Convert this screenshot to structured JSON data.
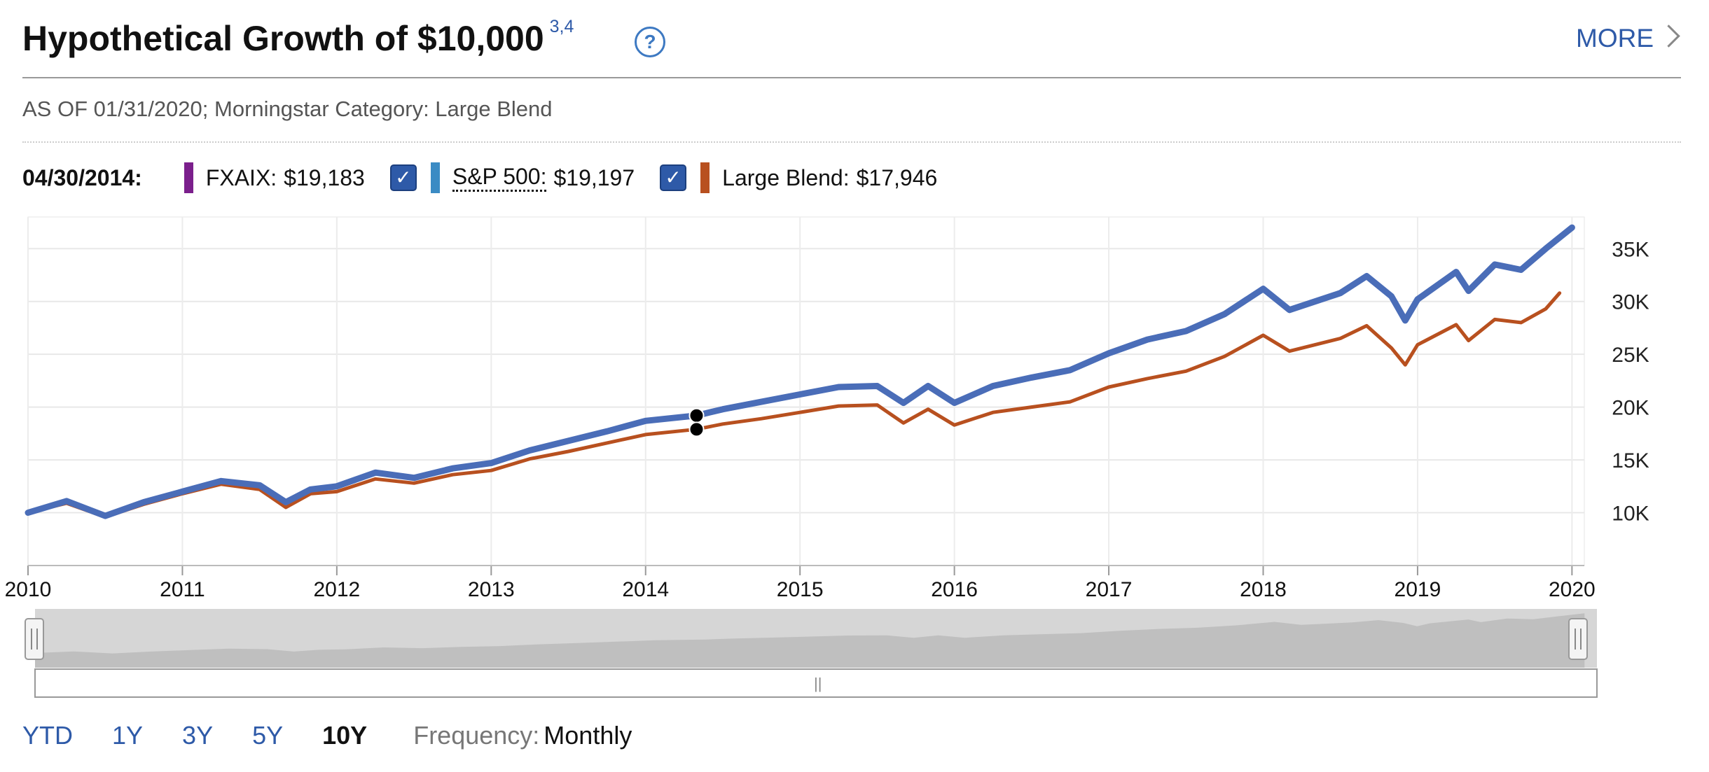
{
  "header": {
    "title": "Hypothetical Growth of $10,000",
    "footnote": "3,4",
    "help_icon": "question-circle-icon",
    "more_label": "MORE"
  },
  "as_of": "AS OF 01/31/2020; Morningstar Category: Large Blend",
  "legend": {
    "date": "04/30/2014:",
    "items": [
      {
        "name": "FXAIX:",
        "value": "$19,183",
        "color": "#7b1f8c",
        "checkbox": false
      },
      {
        "name": "S&P 500:",
        "value": "$19,197",
        "color": "#3b8bc4",
        "checkbox": true
      },
      {
        "name": "Large Blend:",
        "value": "$17,946",
        "color": "#b8501f",
        "checkbox": true
      }
    ]
  },
  "periods": [
    "YTD",
    "1Y",
    "3Y",
    "5Y",
    "10Y"
  ],
  "active_period": "10Y",
  "frequency": {
    "label": "Frequency:",
    "value": "Monthly"
  },
  "chart_data": {
    "type": "line",
    "x_ticks": [
      "2010",
      "2011",
      "2012",
      "2013",
      "2014",
      "2015",
      "2016",
      "2017",
      "2018",
      "2019",
      "2020"
    ],
    "y_ticks": [
      "10K",
      "15K",
      "20K",
      "25K",
      "30K",
      "35K"
    ],
    "ylim": [
      5000,
      38000
    ],
    "xlim": [
      2010.0,
      2020.08
    ],
    "grid": true,
    "highlight_x": 2014.33,
    "series": [
      {
        "name": "S&P 500",
        "color": "#4a6db8",
        "points": [
          [
            2010.0,
            10000
          ],
          [
            2010.25,
            11100
          ],
          [
            2010.5,
            9700
          ],
          [
            2010.75,
            11000
          ],
          [
            2011.0,
            12000
          ],
          [
            2011.25,
            13000
          ],
          [
            2011.5,
            12600
          ],
          [
            2011.67,
            11000
          ],
          [
            2011.83,
            12200
          ],
          [
            2012.0,
            12500
          ],
          [
            2012.25,
            13800
          ],
          [
            2012.5,
            13300
          ],
          [
            2012.75,
            14200
          ],
          [
            2013.0,
            14700
          ],
          [
            2013.25,
            15900
          ],
          [
            2013.5,
            16800
          ],
          [
            2013.75,
            17700
          ],
          [
            2014.0,
            18700
          ],
          [
            2014.33,
            19200
          ],
          [
            2014.5,
            19800
          ],
          [
            2014.75,
            20500
          ],
          [
            2015.0,
            21200
          ],
          [
            2015.25,
            21900
          ],
          [
            2015.5,
            22000
          ],
          [
            2015.67,
            20400
          ],
          [
            2015.83,
            22000
          ],
          [
            2016.0,
            20400
          ],
          [
            2016.25,
            22000
          ],
          [
            2016.5,
            22800
          ],
          [
            2016.75,
            23500
          ],
          [
            2017.0,
            25100
          ],
          [
            2017.25,
            26400
          ],
          [
            2017.5,
            27200
          ],
          [
            2017.75,
            28800
          ],
          [
            2018.0,
            31200
          ],
          [
            2018.17,
            29200
          ],
          [
            2018.5,
            30800
          ],
          [
            2018.67,
            32400
          ],
          [
            2018.83,
            30500
          ],
          [
            2018.92,
            28200
          ],
          [
            2019.0,
            30200
          ],
          [
            2019.25,
            32800
          ],
          [
            2019.33,
            31000
          ],
          [
            2019.5,
            33500
          ],
          [
            2019.67,
            33000
          ],
          [
            2019.83,
            35000
          ],
          [
            2020.0,
            37000
          ]
        ]
      },
      {
        "name": "Large Blend",
        "color": "#b8501f",
        "points": [
          [
            2010.0,
            10000
          ],
          [
            2010.25,
            10900
          ],
          [
            2010.5,
            9600
          ],
          [
            2010.75,
            10800
          ],
          [
            2011.0,
            11800
          ],
          [
            2011.25,
            12700
          ],
          [
            2011.5,
            12200
          ],
          [
            2011.67,
            10500
          ],
          [
            2011.83,
            11800
          ],
          [
            2012.0,
            12000
          ],
          [
            2012.25,
            13200
          ],
          [
            2012.5,
            12800
          ],
          [
            2012.75,
            13600
          ],
          [
            2013.0,
            14000
          ],
          [
            2013.25,
            15100
          ],
          [
            2013.5,
            15800
          ],
          [
            2013.75,
            16600
          ],
          [
            2014.0,
            17400
          ],
          [
            2014.33,
            17900
          ],
          [
            2014.5,
            18400
          ],
          [
            2014.75,
            18900
          ],
          [
            2015.0,
            19500
          ],
          [
            2015.25,
            20100
          ],
          [
            2015.5,
            20200
          ],
          [
            2015.67,
            18500
          ],
          [
            2015.83,
            19800
          ],
          [
            2016.0,
            18300
          ],
          [
            2016.25,
            19500
          ],
          [
            2016.5,
            20000
          ],
          [
            2016.75,
            20500
          ],
          [
            2017.0,
            21900
          ],
          [
            2017.25,
            22700
          ],
          [
            2017.5,
            23400
          ],
          [
            2017.75,
            24800
          ],
          [
            2018.0,
            26800
          ],
          [
            2018.17,
            25300
          ],
          [
            2018.5,
            26500
          ],
          [
            2018.67,
            27700
          ],
          [
            2018.83,
            25600
          ],
          [
            2018.92,
            24000
          ],
          [
            2019.0,
            25900
          ],
          [
            2019.25,
            27800
          ],
          [
            2019.33,
            26300
          ],
          [
            2019.5,
            28300
          ],
          [
            2019.67,
            28000
          ],
          [
            2019.83,
            29300
          ],
          [
            2019.92,
            30800
          ]
        ]
      }
    ]
  }
}
